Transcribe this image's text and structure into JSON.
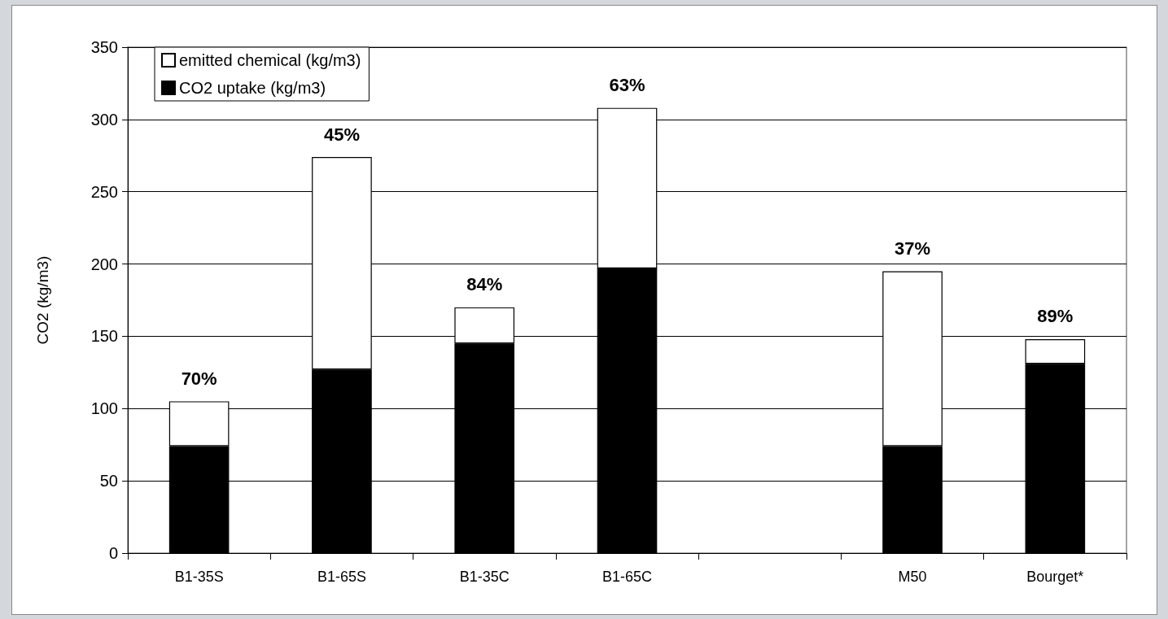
{
  "chart_data": {
    "type": "bar",
    "stacked": true,
    "ylabel": "CO2 (kg/m3)",
    "categories": [
      "B1-35S",
      "B1-65S",
      "B1-35C",
      "B1-65C",
      null,
      "M50",
      "Bourget*"
    ],
    "series": [
      {
        "name": "CO2 uptake (kg/m3)",
        "color": "#000000",
        "values": [
          74,
          127,
          145,
          197,
          null,
          74,
          131
        ]
      },
      {
        "name": "emitted chemical (kg/m3)",
        "color": "#ffffff",
        "values": [
          31,
          147,
          25,
          111,
          null,
          121,
          17
        ]
      }
    ],
    "ylim": [
      0,
      350
    ],
    "yticks": [
      0,
      50,
      100,
      150,
      200,
      250,
      300,
      350
    ],
    "grid": "y",
    "legend": "top left",
    "annotations": [
      "70%",
      "45%",
      "84%",
      "63%",
      "37%",
      "89%"
    ]
  }
}
